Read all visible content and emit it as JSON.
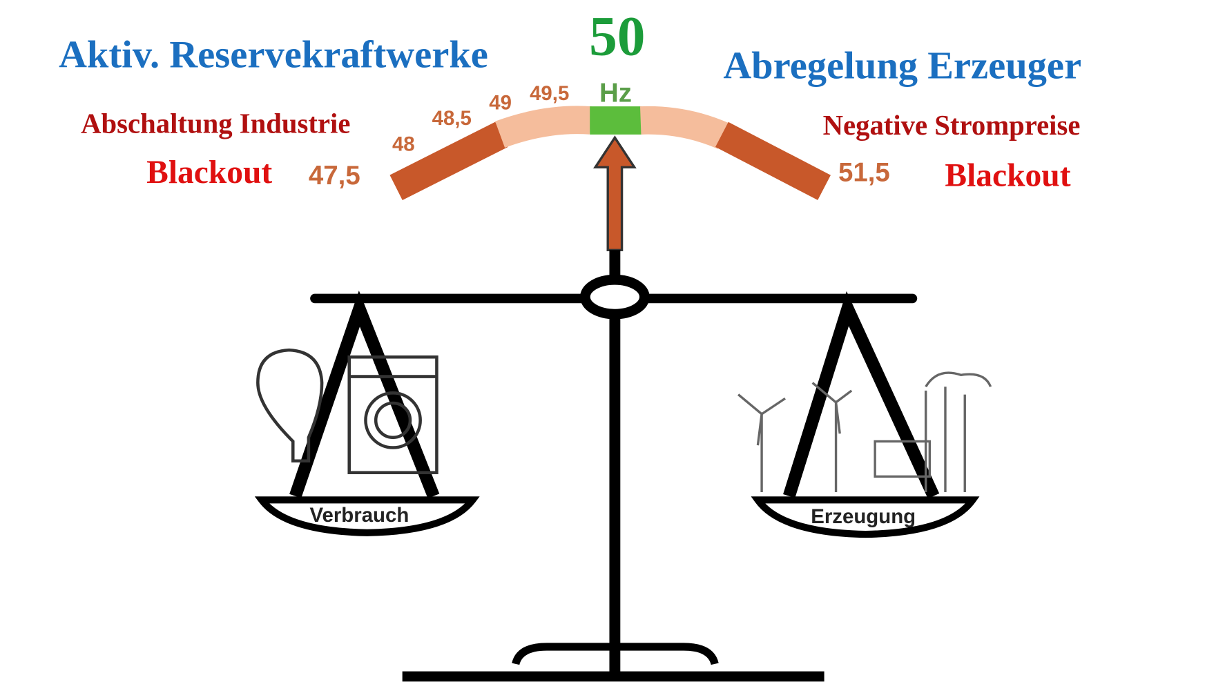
{
  "frequency": {
    "value": "50",
    "unit": "Hz"
  },
  "left": {
    "heading": "Aktiv. Reservekraftwerke",
    "measure": "Abschaltung Industrie",
    "limit": "Blackout"
  },
  "right": {
    "heading": "Abregelung Erzeuger",
    "measure": "Negative Strompreise",
    "limit": "Blackout"
  },
  "gauge_labels": [
    "47,5",
    "48",
    "48,5",
    "49",
    "49,5",
    "51,5"
  ],
  "pans": {
    "left": "Verbrauch",
    "right": "Erzeugung"
  }
}
